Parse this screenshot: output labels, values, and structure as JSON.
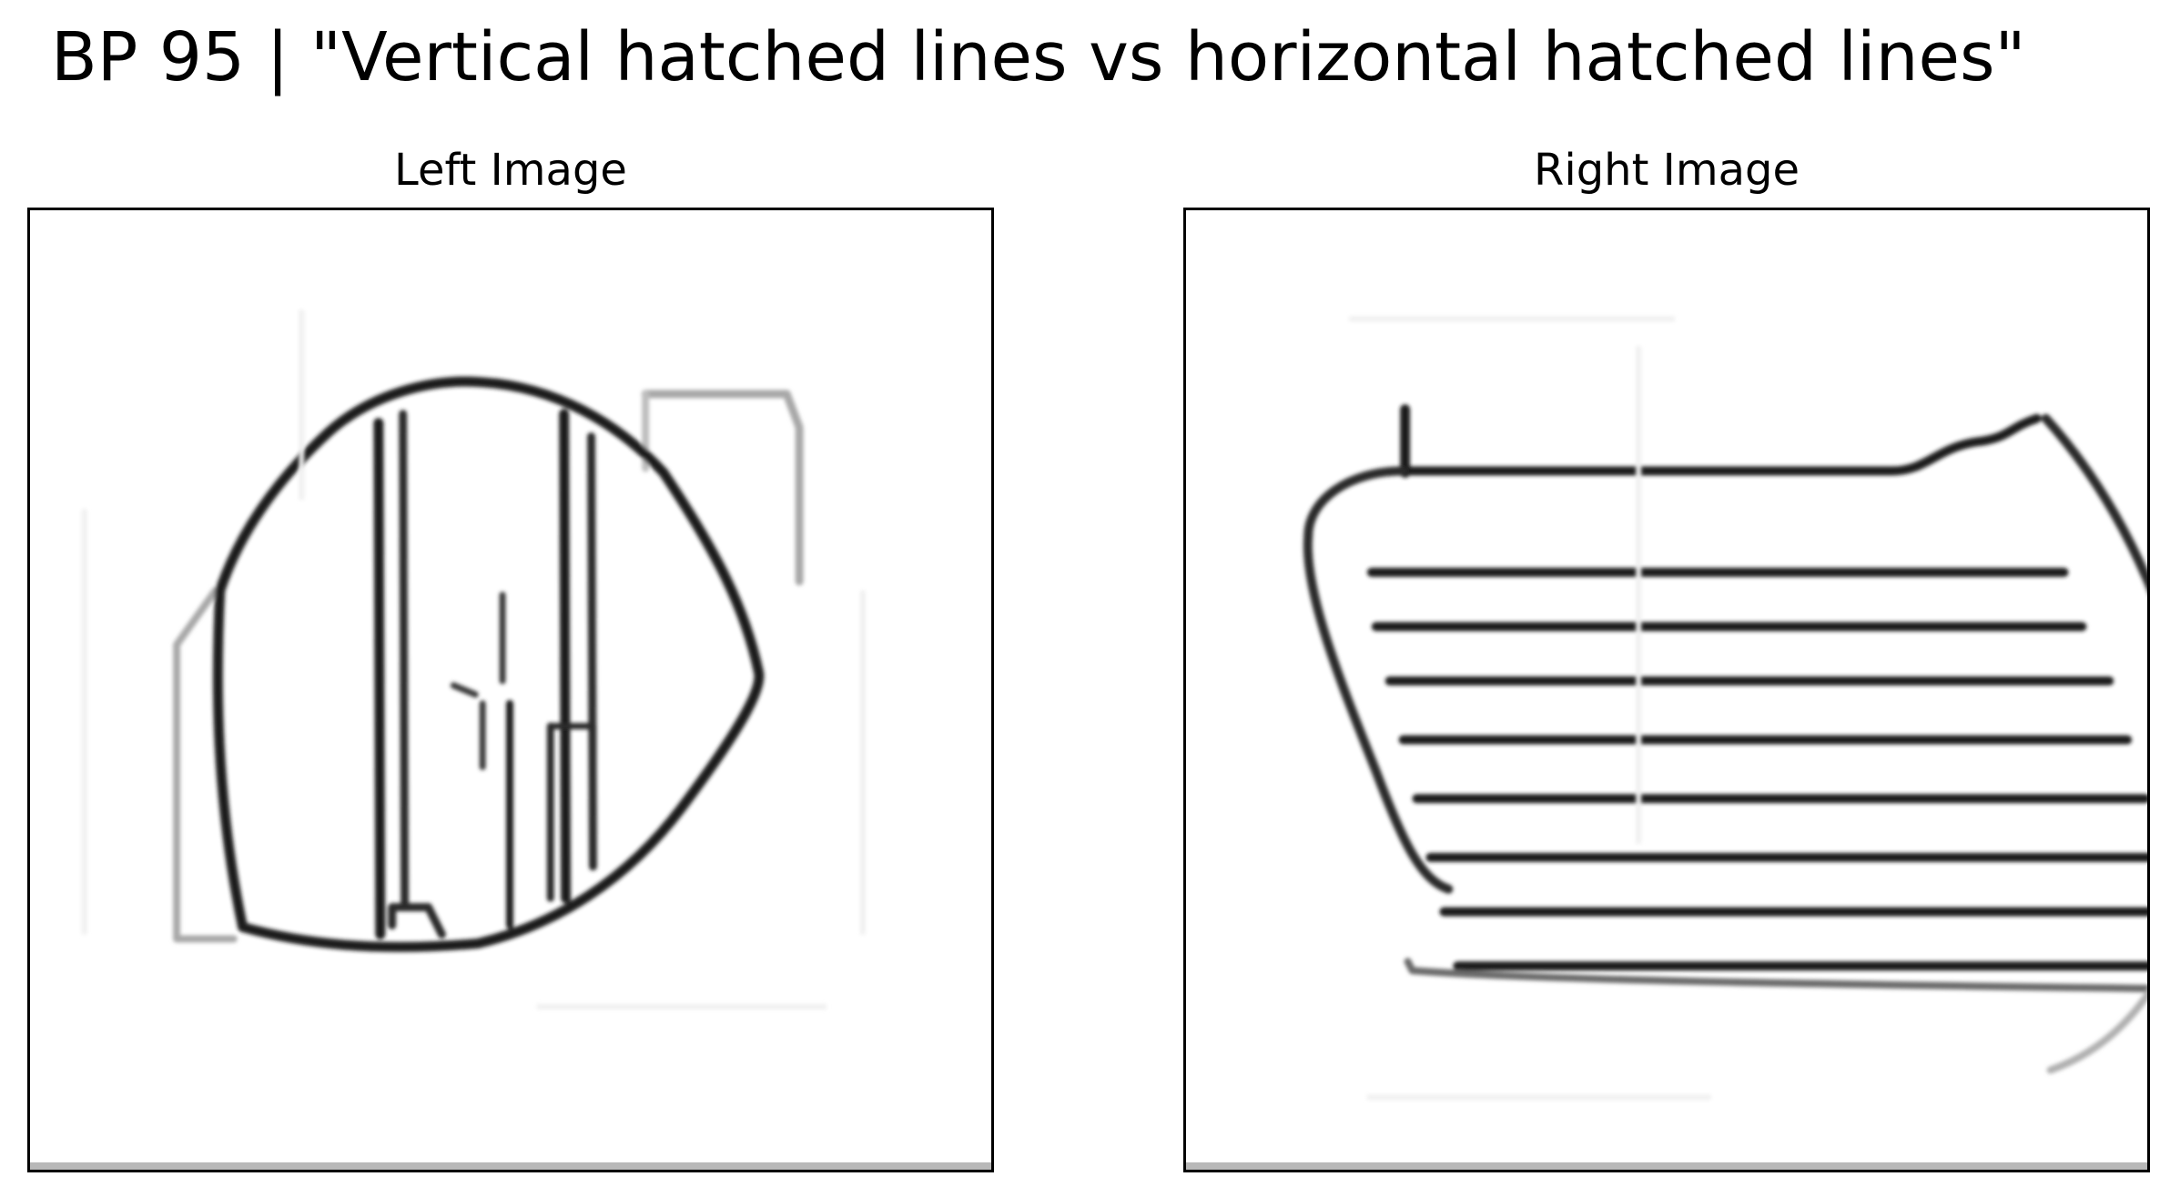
{
  "figure": {
    "title": "BP 95 | \"Vertical hatched lines vs horizontal hatched lines\""
  },
  "panels": {
    "left": {
      "title": "Left Image",
      "content": "vertical-hatched-shape"
    },
    "right": {
      "title": "Right Image",
      "content": "horizontal-hatched-shape"
    }
  },
  "colors": {
    "stroke": "#1a1a1a",
    "faint_stroke": "#9a9a9a",
    "background": "#ffffff",
    "frame": "#000000"
  }
}
